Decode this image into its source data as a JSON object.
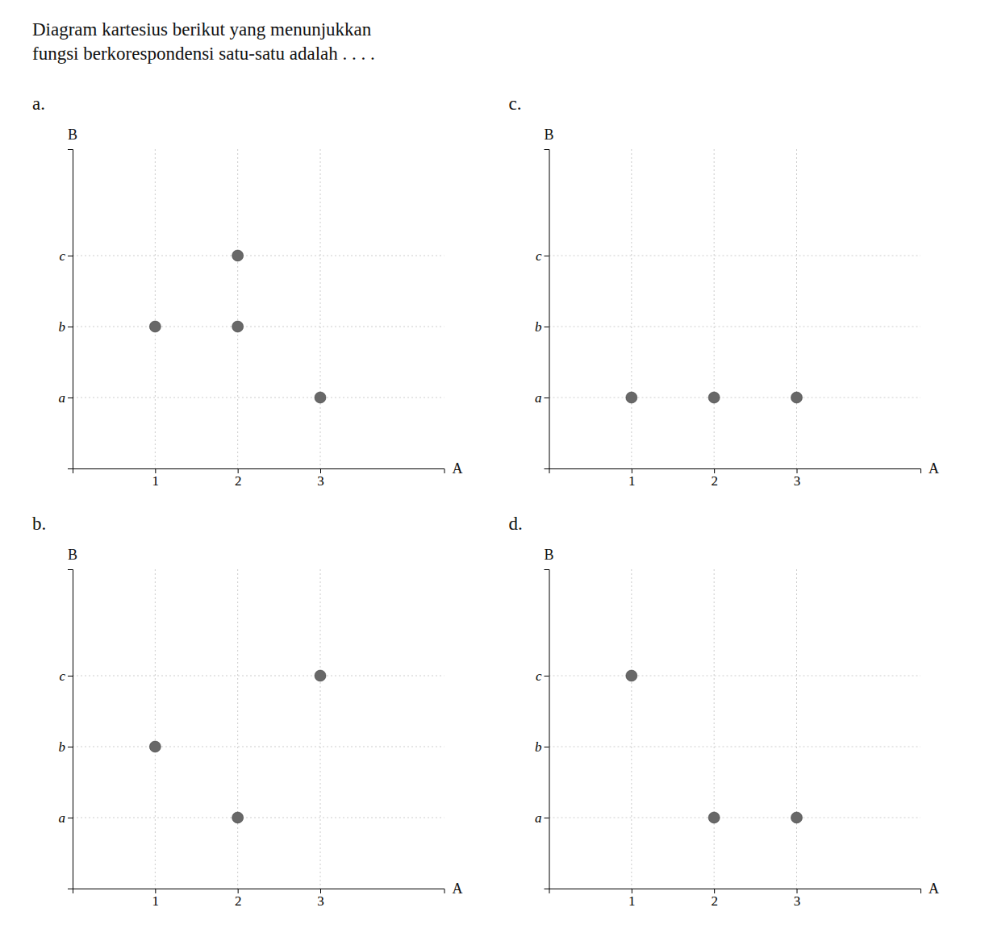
{
  "title": [
    "Diagram kartesius berikut yang menunjukkan",
    "fungsi berkorespondensi satu-satu adalah . . . ."
  ],
  "chart_data": [
    {
      "type": "scatter",
      "title": "a.",
      "x_label": "A",
      "y_label": "B",
      "x": [
        1,
        2,
        2,
        3
      ],
      "values": [
        2,
        2,
        3,
        1
      ],
      "color": "#686868",
      "xlim": [
        0,
        4.5
      ],
      "ylim": [
        0,
        4.5
      ],
      "xticks": [
        1,
        2,
        3
      ],
      "yticks": [
        {
          "value": 1,
          "label": "a"
        },
        {
          "value": 2,
          "label": "b"
        },
        {
          "value": 3,
          "label": "c"
        }
      ],
      "grid": true
    },
    {
      "type": "scatter",
      "title": "c.",
      "x_label": "A",
      "y_label": "B",
      "x": [
        1,
        2,
        3
      ],
      "values": [
        1,
        1,
        1
      ],
      "color": "#686868",
      "xlim": [
        0,
        4.5
      ],
      "ylim": [
        0,
        4.5
      ],
      "xticks": [
        1,
        2,
        3
      ],
      "yticks": [
        {
          "value": 1,
          "label": "a"
        },
        {
          "value": 2,
          "label": "b"
        },
        {
          "value": 3,
          "label": "c"
        }
      ],
      "grid": true
    },
    {
      "type": "scatter",
      "title": "b.",
      "x_label": "A",
      "y_label": "B",
      "x": [
        1,
        2,
        3
      ],
      "values": [
        2,
        1,
        3
      ],
      "color": "#686868",
      "xlim": [
        0,
        4.5
      ],
      "ylim": [
        0,
        4.5
      ],
      "xticks": [
        1,
        2,
        3
      ],
      "yticks": [
        {
          "value": 1,
          "label": "a"
        },
        {
          "value": 2,
          "label": "b"
        },
        {
          "value": 3,
          "label": "c"
        }
      ],
      "grid": true
    },
    {
      "type": "scatter",
      "title": "d.",
      "x_label": "A",
      "y_label": "B",
      "x": [
        1,
        2,
        3
      ],
      "values": [
        3,
        1,
        1
      ],
      "color": "#686868",
      "xlim": [
        0,
        4.5
      ],
      "ylim": [
        0,
        4.5
      ],
      "xticks": [
        1,
        2,
        3
      ],
      "yticks": [
        {
          "value": 1,
          "label": "a"
        },
        {
          "value": 2,
          "label": "b"
        },
        {
          "value": 3,
          "label": "c"
        }
      ],
      "grid": true
    }
  ]
}
